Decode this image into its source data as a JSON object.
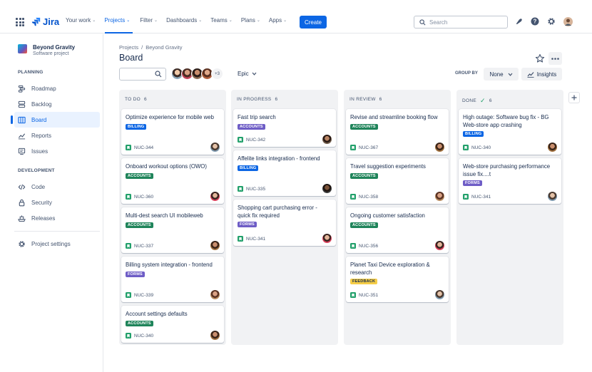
{
  "topnav": {
    "logo_text": "Jira",
    "items": [
      {
        "label": "Your work",
        "active": false
      },
      {
        "label": "Projects",
        "active": true
      },
      {
        "label": "Filter",
        "active": false
      },
      {
        "label": "Dashboards",
        "active": false
      },
      {
        "label": "Teams",
        "active": false
      },
      {
        "label": "Plans",
        "active": false
      },
      {
        "label": "Apps",
        "active": false
      }
    ],
    "create_label": "Create",
    "search_placeholder": "Search"
  },
  "sidebar": {
    "project_name": "Beyond Gravity",
    "project_type": "Software project",
    "planning_label": "PLANNING",
    "planning_items": [
      {
        "label": "Roadmap",
        "icon": "roadmap-icon"
      },
      {
        "label": "Backlog",
        "icon": "backlog-icon"
      },
      {
        "label": "Board",
        "icon": "board-icon",
        "active": true
      },
      {
        "label": "Reports",
        "icon": "reports-icon"
      },
      {
        "label": "Issues",
        "icon": "issues-icon"
      }
    ],
    "development_label": "DEVELOPMENT",
    "development_items": [
      {
        "label": "Code",
        "icon": "code-icon"
      },
      {
        "label": "Security",
        "icon": "lock-icon"
      },
      {
        "label": "Releases",
        "icon": "ship-icon"
      }
    ],
    "settings_label": "Project settings"
  },
  "header": {
    "breadcrumb": [
      "Projects",
      "/",
      "Beyond Gravity"
    ],
    "title": "Board",
    "avatar_more": "+3",
    "epic_label": "Epic",
    "groupby_label": "GROUP BY",
    "groupby_value": "None",
    "insights_label": "Insights"
  },
  "label_colors": {
    "BILLING": {
      "bg": "#0c66e4",
      "fg": "#ffffff"
    },
    "ACCOUNTS": {
      "bg": "#1f845a",
      "fg": "#ffffff"
    },
    "FORMS": {
      "bg": "#6e5dc6",
      "fg": "#ffffff"
    },
    "FEEDBACK": {
      "bg": "#f5cd47",
      "fg": "#172b4d"
    }
  },
  "columns": [
    {
      "title": "TO DO",
      "count": "6",
      "done": false,
      "cards": [
        {
          "title": "Optimize experience for mobile web",
          "label": "BILLING",
          "key": "NUC-344"
        },
        {
          "title": "Onboard workout options (OWO)",
          "label": "ACCOUNTS",
          "key": "NUC-360"
        },
        {
          "title": "Multi-dest search UI mobileweb",
          "label": "ACCOUNTS",
          "key": "NUC-337"
        },
        {
          "title": "Billing system integration - frontend",
          "label": "FORMS",
          "key": "NUC-339"
        },
        {
          "title": "Account settings defaults",
          "label": "ACCOUNTS",
          "key": "NUC-340"
        }
      ]
    },
    {
      "title": "IN PROGRESS",
      "count": "6",
      "done": false,
      "cards": [
        {
          "title": "Fast trip search",
          "label": "ACCOUNTS",
          "key": "NUC-342"
        },
        {
          "title": "Affelite links integration - frontend",
          "label": "BILLING",
          "key": "NUC-335"
        },
        {
          "title": "Shopping cart purchasing error - quick fix required",
          "label": "FORMS",
          "key": "NUC-341"
        }
      ]
    },
    {
      "title": "IN REVIEW",
      "count": "6",
      "done": false,
      "cards": [
        {
          "title": "Revise and streamline booking flow",
          "label": "ACCOUNTS",
          "key": "NUC-367"
        },
        {
          "title": "Travel suggestion experiments",
          "label": "ACCOUNTS",
          "key": "NUC-358"
        },
        {
          "title": "Ongoing customer satisfaction",
          "label": "ACCOUNTS",
          "key": "NUC-356"
        },
        {
          "title": "Planet Taxi Device exploration & research",
          "label": "FEEDBACK",
          "key": "NUC-351"
        }
      ]
    },
    {
      "title": "DONE",
      "count": "6",
      "done": true,
      "cards": [
        {
          "title": "High outage: Software bug fix - BG Web-store app crashing",
          "label": "BILLING",
          "key": "NUC-340"
        },
        {
          "title": "Web-store purchasing performance issue fix....t",
          "label": "FORMS",
          "key": "NUC-341"
        }
      ]
    }
  ]
}
